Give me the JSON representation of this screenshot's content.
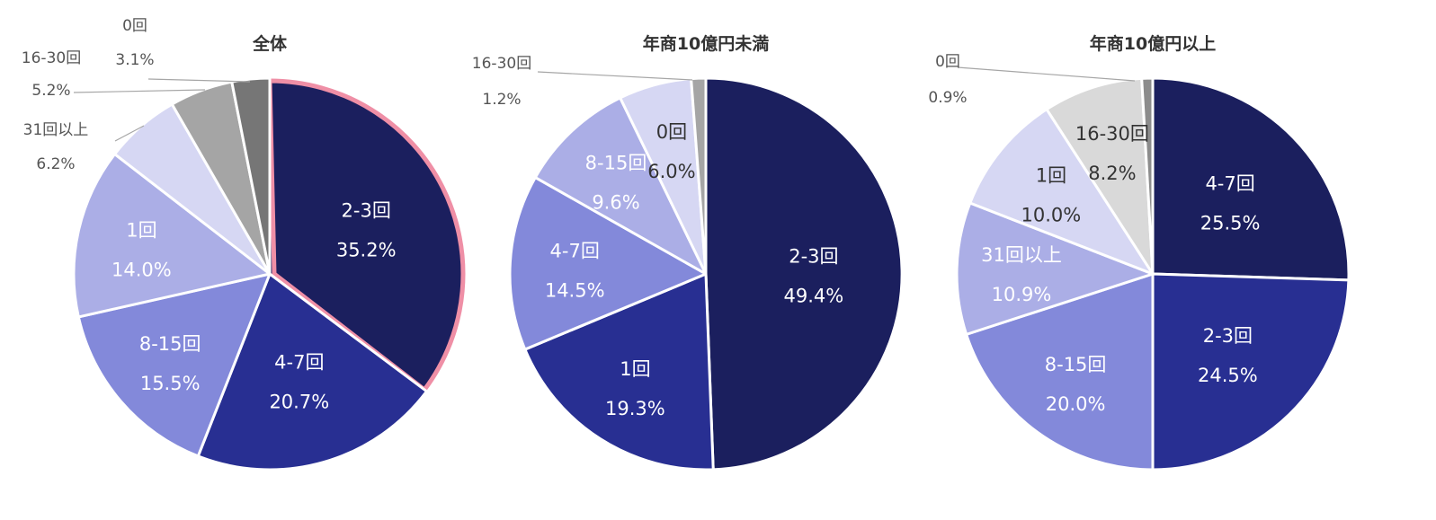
{
  "chart_data": [
    {
      "type": "pie",
      "title": "全体",
      "slices": [
        {
          "label": "2-3回",
          "value": 35.2,
          "pct_text": "35.2%",
          "color": "#1b1f5e",
          "text_color": "#ffffff",
          "highlight": true
        },
        {
          "label": "4-7回",
          "value": 20.7,
          "pct_text": "20.7%",
          "color": "#282f92",
          "text_color": "#ffffff"
        },
        {
          "label": "8-15回",
          "value": 15.5,
          "pct_text": "15.5%",
          "color": "#8389da",
          "text_color": "#ffffff"
        },
        {
          "label": "1回",
          "value": 14.0,
          "pct_text": "14.0%",
          "color": "#abaee6",
          "text_color": "#ffffff"
        },
        {
          "label": "31回以上",
          "value": 6.2,
          "pct_text": "6.2%",
          "color": "#d6d7f3",
          "text_color": "#555555",
          "outside": true
        },
        {
          "label": "16-30回",
          "value": 5.2,
          "pct_text": "5.2%",
          "color": "#a5a5a5",
          "text_color": "#555555",
          "outside": true
        },
        {
          "label": "0回",
          "value": 3.1,
          "pct_text": "3.1%",
          "color": "#767676",
          "text_color": "#555555",
          "outside": true
        }
      ]
    },
    {
      "type": "pie",
      "title": "年商10億円未満",
      "slices": [
        {
          "label": "2-3回",
          "value": 49.4,
          "pct_text": "49.4%",
          "color": "#1b1f5e",
          "text_color": "#ffffff"
        },
        {
          "label": "1回",
          "value": 19.3,
          "pct_text": "19.3%",
          "color": "#282f92",
          "text_color": "#ffffff"
        },
        {
          "label": "4-7回",
          "value": 14.5,
          "pct_text": "14.5%",
          "color": "#8389da",
          "text_color": "#ffffff"
        },
        {
          "label": "8-15回",
          "value": 9.6,
          "pct_text": "9.6%",
          "color": "#abaee6",
          "text_color": "#ffffff"
        },
        {
          "label": "0回",
          "value": 6.0,
          "pct_text": "6.0%",
          "color": "#d6d7f3",
          "text_color": "#333333"
        },
        {
          "label": "16-30回",
          "value": 1.2,
          "pct_text": "1.2%",
          "color": "#a5a5a5",
          "text_color": "#555555",
          "outside": true
        }
      ]
    },
    {
      "type": "pie",
      "title": "年商10億円以上",
      "slices": [
        {
          "label": "4-7回",
          "value": 25.5,
          "pct_text": "25.5%",
          "color": "#1b1f5e",
          "text_color": "#ffffff"
        },
        {
          "label": "2-3回",
          "value": 24.5,
          "pct_text": "24.5%",
          "color": "#282f92",
          "text_color": "#ffffff"
        },
        {
          "label": "8-15回",
          "value": 20.0,
          "pct_text": "20.0%",
          "color": "#8389da",
          "text_color": "#ffffff"
        },
        {
          "label": "31回以上",
          "value": 10.9,
          "pct_text": "10.9%",
          "color": "#abaee6",
          "text_color": "#ffffff"
        },
        {
          "label": "1回",
          "value": 10.0,
          "pct_text": "10.0%",
          "color": "#d6d7f3",
          "text_color": "#333333"
        },
        {
          "label": "16-30回",
          "value": 8.2,
          "pct_text": "8.2%",
          "color": "#d9d9d9",
          "text_color": "#333333"
        },
        {
          "label": "0回",
          "value": 0.9,
          "pct_text": "0.9%",
          "color": "#8c8c8c",
          "text_color": "#555555",
          "outside": true
        }
      ]
    }
  ]
}
